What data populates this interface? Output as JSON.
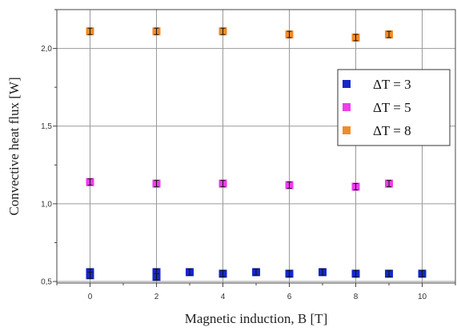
{
  "chart_data": {
    "type": "scatter",
    "xlabel": "Magnetic induction, B [T]",
    "ylabel": "Convective heat flux [W]",
    "xlim": [
      -1,
      11
    ],
    "ylim": [
      0.49,
      2.25
    ],
    "x_ticks": [
      0,
      2,
      4,
      6,
      8,
      10
    ],
    "x_tick_labels": [
      "0",
      "2",
      "4",
      "6",
      "8",
      "10"
    ],
    "y_ticks": [
      0.5,
      1.0,
      1.5,
      2.0
    ],
    "y_tick_labels": [
      "0,5",
      "1,0",
      "1,5",
      "2,0"
    ],
    "grid": "vertical lines at x ticks, horizontal lines at y ticks",
    "legend_position": "right",
    "series": [
      {
        "name": "ΔT = 3",
        "color": "#1428c8",
        "points": [
          {
            "x": 0,
            "y": 0.56
          },
          {
            "x": 0,
            "y": 0.54
          },
          {
            "x": 2,
            "y": 0.56
          },
          {
            "x": 2,
            "y": 0.53
          },
          {
            "x": 3,
            "y": 0.56
          },
          {
            "x": 4,
            "y": 0.55
          },
          {
            "x": 5,
            "y": 0.56
          },
          {
            "x": 6,
            "y": 0.55
          },
          {
            "x": 7,
            "y": 0.56
          },
          {
            "x": 8,
            "y": 0.55
          },
          {
            "x": 9,
            "y": 0.55
          },
          {
            "x": 10,
            "y": 0.55
          }
        ]
      },
      {
        "name": "ΔT = 5",
        "color": "#ee3cee",
        "points": [
          {
            "x": 0,
            "y": 1.14
          },
          {
            "x": 2,
            "y": 1.13
          },
          {
            "x": 4,
            "y": 1.13
          },
          {
            "x": 6,
            "y": 1.12
          },
          {
            "x": 8,
            "y": 1.11
          },
          {
            "x": 9,
            "y": 1.13
          }
        ]
      },
      {
        "name": "ΔT = 8",
        "color": "#f08c28",
        "points": [
          {
            "x": 0,
            "y": 2.11
          },
          {
            "x": 2,
            "y": 2.11
          },
          {
            "x": 4,
            "y": 2.11
          },
          {
            "x": 6,
            "y": 2.09
          },
          {
            "x": 8,
            "y": 2.07
          },
          {
            "x": 9,
            "y": 2.09
          }
        ]
      }
    ]
  }
}
